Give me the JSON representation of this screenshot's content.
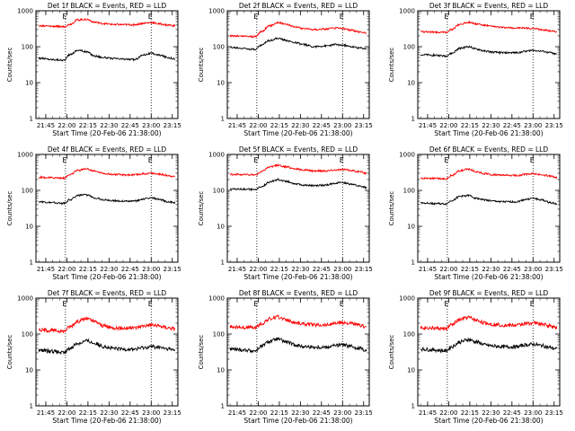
{
  "chart_data": [
    {
      "type": "line",
      "title": "Det 1f BLACK = Events, RED = LLD",
      "ylabel": "Counts/sec",
      "xlabel": "Start Time (20-Feb-06 21:38:00)",
      "x_ticks": [
        "21:45",
        "22:00",
        "22:15",
        "22:30",
        "22:45",
        "23:00",
        "23:15"
      ],
      "y_ticks": [
        "1",
        "10",
        "100",
        "1000"
      ],
      "ylim": [
        1,
        1000
      ],
      "y_scale": "log",
      "vlines": [
        "21:59",
        "23:00"
      ],
      "vline_labels": [
        "E",
        "E"
      ],
      "series": [
        {
          "name": "BLACK = Events",
          "color": "#000000",
          "x": [
            "21:40",
            "21:50",
            "21:58",
            "22:02",
            "22:08",
            "22:14",
            "22:20",
            "22:26",
            "22:32",
            "22:40",
            "22:48",
            "22:55",
            "23:00",
            "23:06",
            "23:12",
            "23:17"
          ],
          "values": [
            48,
            44,
            42,
            60,
            80,
            72,
            55,
            50,
            47,
            45,
            44,
            60,
            65,
            58,
            50,
            46
          ]
        },
        {
          "name": "RED = LLD",
          "color": "#ff0000",
          "x": [
            "21:40",
            "21:50",
            "21:58",
            "22:02",
            "22:08",
            "22:14",
            "22:20",
            "22:26",
            "22:32",
            "22:40",
            "22:48",
            "22:55",
            "23:00",
            "23:06",
            "23:12",
            "23:17"
          ],
          "values": [
            380,
            370,
            360,
            420,
            560,
            580,
            480,
            440,
            420,
            410,
            410,
            450,
            470,
            430,
            400,
            380
          ]
        }
      ]
    },
    {
      "type": "line",
      "title": "Det 2f BLACK = Events, RED = LLD",
      "ylabel": "Counts/sec",
      "xlabel": "Start Time (20-Feb-06 21:38:00)",
      "x_ticks": [
        "21:45",
        "22:00",
        "22:15",
        "22:30",
        "22:45",
        "23:00",
        "23:15"
      ],
      "y_ticks": [
        "1",
        "10",
        "100",
        "1000"
      ],
      "ylim": [
        1,
        1000
      ],
      "y_scale": "log",
      "vlines": [
        "21:59",
        "23:00"
      ],
      "vline_labels": [
        "E",
        "E"
      ],
      "series": [
        {
          "name": "BLACK = Events",
          "color": "#000000",
          "x": [
            "21:40",
            "21:50",
            "21:58",
            "22:02",
            "22:08",
            "22:14",
            "22:20",
            "22:26",
            "22:32",
            "22:40",
            "22:48",
            "22:55",
            "23:00",
            "23:06",
            "23:12",
            "23:17"
          ],
          "values": [
            95,
            90,
            85,
            110,
            150,
            170,
            150,
            130,
            115,
            100,
            105,
            115,
            110,
            100,
            92,
            88
          ]
        },
        {
          "name": "RED = LLD",
          "color": "#ff0000",
          "x": [
            "21:40",
            "21:50",
            "21:58",
            "22:02",
            "22:08",
            "22:14",
            "22:20",
            "22:26",
            "22:32",
            "22:40",
            "22:48",
            "22:55",
            "23:00",
            "23:06",
            "23:12",
            "23:17"
          ],
          "values": [
            200,
            195,
            190,
            260,
            380,
            470,
            420,
            360,
            320,
            300,
            310,
            330,
            320,
            290,
            260,
            240
          ]
        }
      ]
    },
    {
      "type": "line",
      "title": "Det 3f BLACK = Events, RED = LLD",
      "ylabel": "Counts/sec",
      "xlabel": "Start Time (20-Feb-06 21:38:00)",
      "x_ticks": [
        "21:45",
        "22:00",
        "22:15",
        "22:30",
        "22:45",
        "23:00",
        "23:15"
      ],
      "y_ticks": [
        "1",
        "10",
        "100",
        "1000"
      ],
      "ylim": [
        1,
        1000
      ],
      "y_scale": "log",
      "vlines": [
        "21:59",
        "23:00"
      ],
      "vline_labels": [
        "E",
        "E"
      ],
      "series": [
        {
          "name": "BLACK = Events",
          "color": "#000000",
          "x": [
            "21:40",
            "21:50",
            "21:58",
            "22:02",
            "22:08",
            "22:14",
            "22:20",
            "22:26",
            "22:32",
            "22:40",
            "22:48",
            "22:55",
            "23:00",
            "23:06",
            "23:12",
            "23:17"
          ],
          "values": [
            60,
            58,
            55,
            65,
            90,
            100,
            85,
            75,
            70,
            68,
            68,
            75,
            80,
            75,
            68,
            62
          ]
        },
        {
          "name": "RED = LLD",
          "color": "#ff0000",
          "x": [
            "21:40",
            "21:50",
            "21:58",
            "22:02",
            "22:08",
            "22:14",
            "22:20",
            "22:26",
            "22:32",
            "22:40",
            "22:48",
            "22:55",
            "23:00",
            "23:06",
            "23:12",
            "23:17"
          ],
          "values": [
            260,
            255,
            250,
            300,
            420,
            480,
            430,
            390,
            360,
            340,
            330,
            330,
            320,
            300,
            280,
            260
          ]
        }
      ]
    },
    {
      "type": "line",
      "title": "Det 4f BLACK = Events, RED = LLD",
      "ylabel": "Counts/sec",
      "xlabel": "Start Time (20-Feb-06 21:38:00)",
      "x_ticks": [
        "21:45",
        "22:00",
        "22:15",
        "22:30",
        "22:45",
        "23:00",
        "23:15"
      ],
      "y_ticks": [
        "1",
        "10",
        "100",
        "1000"
      ],
      "ylim": [
        1,
        1000
      ],
      "y_scale": "log",
      "vlines": [
        "21:59",
        "23:00"
      ],
      "vline_labels": [
        "E",
        "E"
      ],
      "series": [
        {
          "name": "BLACK = Events",
          "color": "#000000",
          "x": [
            "21:40",
            "21:50",
            "21:58",
            "22:02",
            "22:08",
            "22:14",
            "22:20",
            "22:26",
            "22:32",
            "22:40",
            "22:48",
            "22:55",
            "23:00",
            "23:06",
            "23:12",
            "23:17"
          ],
          "values": [
            48,
            45,
            44,
            55,
            72,
            75,
            62,
            55,
            52,
            50,
            50,
            58,
            62,
            55,
            48,
            45
          ]
        },
        {
          "name": "RED = LLD",
          "color": "#ff0000",
          "x": [
            "21:40",
            "21:50",
            "21:58",
            "22:02",
            "22:08",
            "22:14",
            "22:20",
            "22:26",
            "22:32",
            "22:40",
            "22:48",
            "22:55",
            "23:00",
            "23:06",
            "23:12",
            "23:17"
          ],
          "values": [
            230,
            225,
            220,
            270,
            360,
            400,
            340,
            300,
            280,
            270,
            270,
            290,
            300,
            280,
            260,
            240
          ]
        }
      ]
    },
    {
      "type": "line",
      "title": "Det 5f BLACK = Events, RED = LLD",
      "ylabel": "Counts/sec",
      "xlabel": "Start Time (20-Feb-06 21:38:00)",
      "x_ticks": [
        "21:45",
        "22:00",
        "22:15",
        "22:30",
        "22:45",
        "23:00",
        "23:15"
      ],
      "y_ticks": [
        "1",
        "10",
        "100",
        "1000"
      ],
      "ylim": [
        1,
        1000
      ],
      "y_scale": "log",
      "vlines": [
        "21:59",
        "23:00"
      ],
      "vline_labels": [
        "E",
        "E"
      ],
      "series": [
        {
          "name": "BLACK = Events",
          "color": "#000000",
          "x": [
            "21:40",
            "21:50",
            "21:58",
            "22:02",
            "22:08",
            "22:14",
            "22:20",
            "22:26",
            "22:32",
            "22:40",
            "22:48",
            "22:55",
            "23:00",
            "23:06",
            "23:12",
            "23:17"
          ],
          "values": [
            110,
            108,
            105,
            125,
            170,
            200,
            180,
            155,
            140,
            135,
            140,
            160,
            165,
            150,
            130,
            120
          ]
        },
        {
          "name": "RED = LLD",
          "color": "#ff0000",
          "x": [
            "21:40",
            "21:50",
            "21:58",
            "22:02",
            "22:08",
            "22:14",
            "22:20",
            "22:26",
            "22:32",
            "22:40",
            "22:48",
            "22:55",
            "23:00",
            "23:06",
            "23:12",
            "23:17"
          ],
          "values": [
            280,
            275,
            270,
            330,
            450,
            500,
            450,
            400,
            370,
            350,
            350,
            370,
            380,
            360,
            330,
            300
          ]
        }
      ]
    },
    {
      "type": "line",
      "title": "Det 6f BLACK = Events, RED = LLD",
      "ylabel": "Counts/sec",
      "xlabel": "Start Time (20-Feb-06 21:38:00)",
      "x_ticks": [
        "21:45",
        "22:00",
        "22:15",
        "22:30",
        "22:45",
        "23:00",
        "23:15"
      ],
      "y_ticks": [
        "1",
        "10",
        "100",
        "1000"
      ],
      "ylim": [
        1,
        1000
      ],
      "y_scale": "log",
      "vlines": [
        "21:59",
        "23:00"
      ],
      "vline_labels": [
        "E",
        "E"
      ],
      "series": [
        {
          "name": "BLACK = Events",
          "color": "#000000",
          "x": [
            "21:40",
            "21:50",
            "21:58",
            "22:02",
            "22:08",
            "22:14",
            "22:20",
            "22:26",
            "22:32",
            "22:40",
            "22:48",
            "22:55",
            "23:00",
            "23:06",
            "23:12",
            "23:17"
          ],
          "values": [
            45,
            43,
            42,
            52,
            68,
            72,
            60,
            54,
            50,
            48,
            48,
            56,
            60,
            54,
            46,
            42
          ]
        },
        {
          "name": "RED = LLD",
          "color": "#ff0000",
          "x": [
            "21:40",
            "21:50",
            "21:58",
            "22:02",
            "22:08",
            "22:14",
            "22:20",
            "22:26",
            "22:32",
            "22:40",
            "22:48",
            "22:55",
            "23:00",
            "23:06",
            "23:12",
            "23:17"
          ],
          "values": [
            220,
            215,
            210,
            260,
            350,
            390,
            330,
            290,
            270,
            260,
            260,
            280,
            290,
            270,
            250,
            230
          ]
        }
      ]
    },
    {
      "type": "line",
      "title": "Det 7f BLACK = Events, RED = LLD",
      "ylabel": "Counts/sec",
      "xlabel": "Start Time (20-Feb-06 21:38:00)",
      "x_ticks": [
        "21:45",
        "22:00",
        "22:15",
        "22:30",
        "22:45",
        "23:00",
        "23:15"
      ],
      "y_ticks": [
        "1",
        "10",
        "100",
        "1000"
      ],
      "ylim": [
        1,
        1000
      ],
      "y_scale": "log",
      "vlines": [
        "21:59",
        "23:00"
      ],
      "vline_labels": [
        "E",
        "E"
      ],
      "series": [
        {
          "name": "BLACK = Events",
          "color": "#000000",
          "x": [
            "21:40",
            "21:50",
            "21:58",
            "22:02",
            "22:08",
            "22:14",
            "22:20",
            "22:26",
            "22:32",
            "22:40",
            "22:48",
            "22:55",
            "23:00",
            "23:06",
            "23:12",
            "23:17"
          ],
          "values": [
            35,
            33,
            30,
            40,
            55,
            65,
            55,
            45,
            40,
            38,
            38,
            42,
            45,
            42,
            38,
            35
          ]
        },
        {
          "name": "RED = LLD",
          "color": "#ff0000",
          "x": [
            "21:40",
            "21:50",
            "21:58",
            "22:02",
            "22:08",
            "22:14",
            "22:20",
            "22:26",
            "22:32",
            "22:40",
            "22:48",
            "22:55",
            "23:00",
            "23:06",
            "23:12",
            "23:17"
          ],
          "values": [
            130,
            125,
            120,
            160,
            230,
            270,
            220,
            170,
            150,
            145,
            150,
            170,
            180,
            165,
            150,
            140
          ]
        }
      ]
    },
    {
      "type": "line",
      "title": "Det 8f BLACK = Events, RED = LLD",
      "ylabel": "Counts/sec",
      "xlabel": "Start Time (20-Feb-06 21:38:00)",
      "x_ticks": [
        "21:45",
        "22:00",
        "22:15",
        "22:30",
        "22:45",
        "23:00",
        "23:15"
      ],
      "y_ticks": [
        "1",
        "10",
        "100",
        "1000"
      ],
      "ylim": [
        1,
        1000
      ],
      "y_scale": "log",
      "vlines": [
        "21:59",
        "23:00"
      ],
      "vline_labels": [
        "E",
        "E"
      ],
      "series": [
        {
          "name": "BLACK = Events",
          "color": "#000000",
          "x": [
            "21:40",
            "21:50",
            "21:58",
            "22:02",
            "22:08",
            "22:14",
            "22:20",
            "22:26",
            "22:32",
            "22:40",
            "22:48",
            "22:55",
            "23:00",
            "23:06",
            "23:12",
            "23:17"
          ],
          "values": [
            38,
            36,
            34,
            45,
            62,
            72,
            60,
            50,
            45,
            43,
            43,
            48,
            50,
            45,
            40,
            36
          ]
        },
        {
          "name": "RED = LLD",
          "color": "#ff0000",
          "x": [
            "21:40",
            "21:50",
            "21:58",
            "22:02",
            "22:08",
            "22:14",
            "22:20",
            "22:26",
            "22:32",
            "22:40",
            "22:48",
            "22:55",
            "23:00",
            "23:06",
            "23:12",
            "23:17"
          ],
          "values": [
            160,
            155,
            150,
            190,
            260,
            300,
            250,
            210,
            190,
            180,
            180,
            200,
            210,
            195,
            175,
            160
          ]
        }
      ]
    },
    {
      "type": "line",
      "title": "Det 9f BLACK = Events, RED = LLD",
      "ylabel": "Counts/sec",
      "xlabel": "Start Time (20-Feb-06 21:38:00)",
      "x_ticks": [
        "21:45",
        "22:00",
        "22:15",
        "22:30",
        "22:45",
        "23:00",
        "23:15"
      ],
      "y_ticks": [
        "1",
        "10",
        "100",
        "1000"
      ],
      "ylim": [
        1,
        1000
      ],
      "y_scale": "log",
      "vlines": [
        "21:59",
        "23:00"
      ],
      "vline_labels": [
        "E",
        "E"
      ],
      "series": [
        {
          "name": "BLACK = Events",
          "color": "#000000",
          "x": [
            "21:40",
            "21:50",
            "21:58",
            "22:02",
            "22:08",
            "22:14",
            "22:20",
            "22:26",
            "22:32",
            "22:40",
            "22:48",
            "22:55",
            "23:00",
            "23:06",
            "23:12",
            "23:17"
          ],
          "values": [
            38,
            36,
            34,
            44,
            60,
            70,
            60,
            50,
            46,
            44,
            44,
            50,
            52,
            48,
            42,
            38
          ]
        },
        {
          "name": "RED = LLD",
          "color": "#ff0000",
          "x": [
            "21:40",
            "21:50",
            "21:58",
            "22:02",
            "22:08",
            "22:14",
            "22:20",
            "22:26",
            "22:32",
            "22:40",
            "22:48",
            "22:55",
            "23:00",
            "23:06",
            "23:12",
            "23:17"
          ],
          "values": [
            150,
            145,
            140,
            180,
            250,
            290,
            240,
            200,
            185,
            175,
            175,
            195,
            205,
            190,
            170,
            155
          ]
        }
      ]
    }
  ]
}
